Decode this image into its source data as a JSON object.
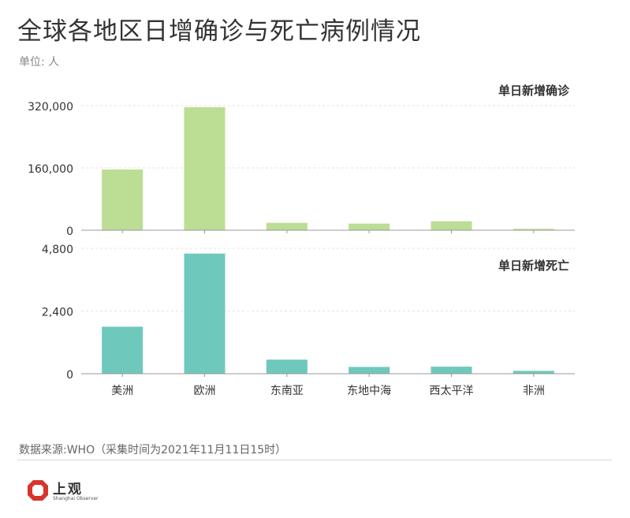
{
  "header": {
    "title": "全球各地区日增确诊与死亡病例情况",
    "unit": "单位: 人"
  },
  "footer": {
    "source": "数据来源:WHO（采集时间为2021年11月11日15时）",
    "logo_cn": "上观",
    "logo_en": "Shanghai Observer"
  },
  "colors": {
    "cases": "#bcdd94",
    "deaths": "#6ec9bc",
    "axis": "#999999",
    "grid": "#e3e3e3",
    "logo": "#d9342b"
  },
  "chart_data": [
    {
      "type": "bar",
      "title": "单日新增确诊",
      "categories": [
        "美洲",
        "欧洲",
        "东南亚",
        "东地中海",
        "西太平洋",
        "非洲"
      ],
      "values": [
        156000,
        316000,
        19000,
        17000,
        23000,
        3500
      ],
      "yticks": [
        0,
        160000,
        320000
      ],
      "ytick_labels": [
        "0",
        "160,000",
        "320,000"
      ],
      "ylim": [
        0,
        320000
      ],
      "grid": true
    },
    {
      "type": "bar",
      "title": "单日新增死亡",
      "categories": [
        "美洲",
        "欧洲",
        "东南亚",
        "东地中海",
        "西太平洋",
        "非洲"
      ],
      "values": [
        1800,
        4600,
        540,
        260,
        270,
        110
      ],
      "yticks": [
        0,
        2400,
        4800
      ],
      "ytick_labels": [
        "0",
        "2,400",
        "4,800"
      ],
      "ylim": [
        0,
        4800
      ],
      "grid": true
    }
  ]
}
